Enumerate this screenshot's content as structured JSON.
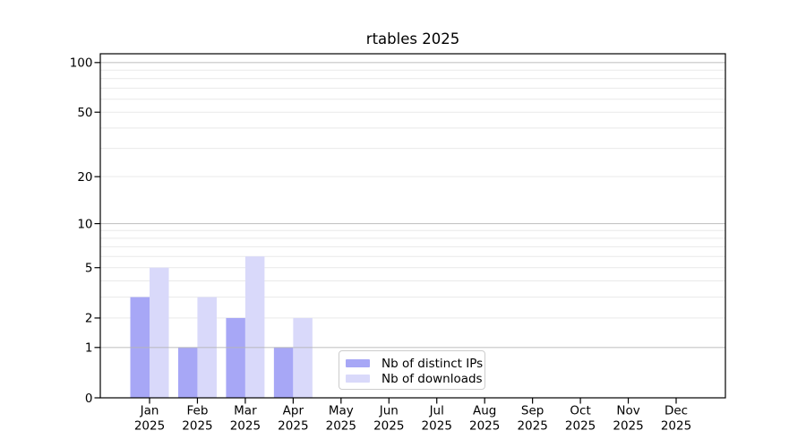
{
  "chart_data": {
    "type": "bar",
    "title": "rtables 2025",
    "year_label": "2025",
    "categories": [
      "Jan",
      "Feb",
      "Mar",
      "Apr",
      "May",
      "Jun",
      "Jul",
      "Aug",
      "Sep",
      "Oct",
      "Nov",
      "Dec"
    ],
    "series": [
      {
        "name": "Nb of distinct IPs",
        "color": "#a7a7f6",
        "values": [
          3,
          1,
          2,
          1,
          0,
          0,
          0,
          0,
          0,
          0,
          0,
          0
        ]
      },
      {
        "name": "Nb of downloads",
        "color": "#d9d9fa",
        "values": [
          5,
          3,
          6,
          2,
          0,
          0,
          0,
          0,
          0,
          0,
          0,
          0
        ]
      }
    ],
    "xlabel": "",
    "ylabel": "",
    "yticks": [
      0,
      1,
      2,
      5,
      10,
      20,
      50,
      100
    ],
    "ylim": [
      0,
      113
    ],
    "scale": "log1p",
    "grid": {
      "on": true,
      "minor_values": [
        2,
        3,
        4,
        5,
        6,
        7,
        8,
        9,
        20,
        30,
        40,
        50,
        60,
        70,
        80,
        90
      ],
      "major_values": [
        1,
        10,
        100
      ],
      "minor_color": "#e9e9e9",
      "major_color": "#b6b6b6"
    },
    "legend_position": "lower center"
  }
}
